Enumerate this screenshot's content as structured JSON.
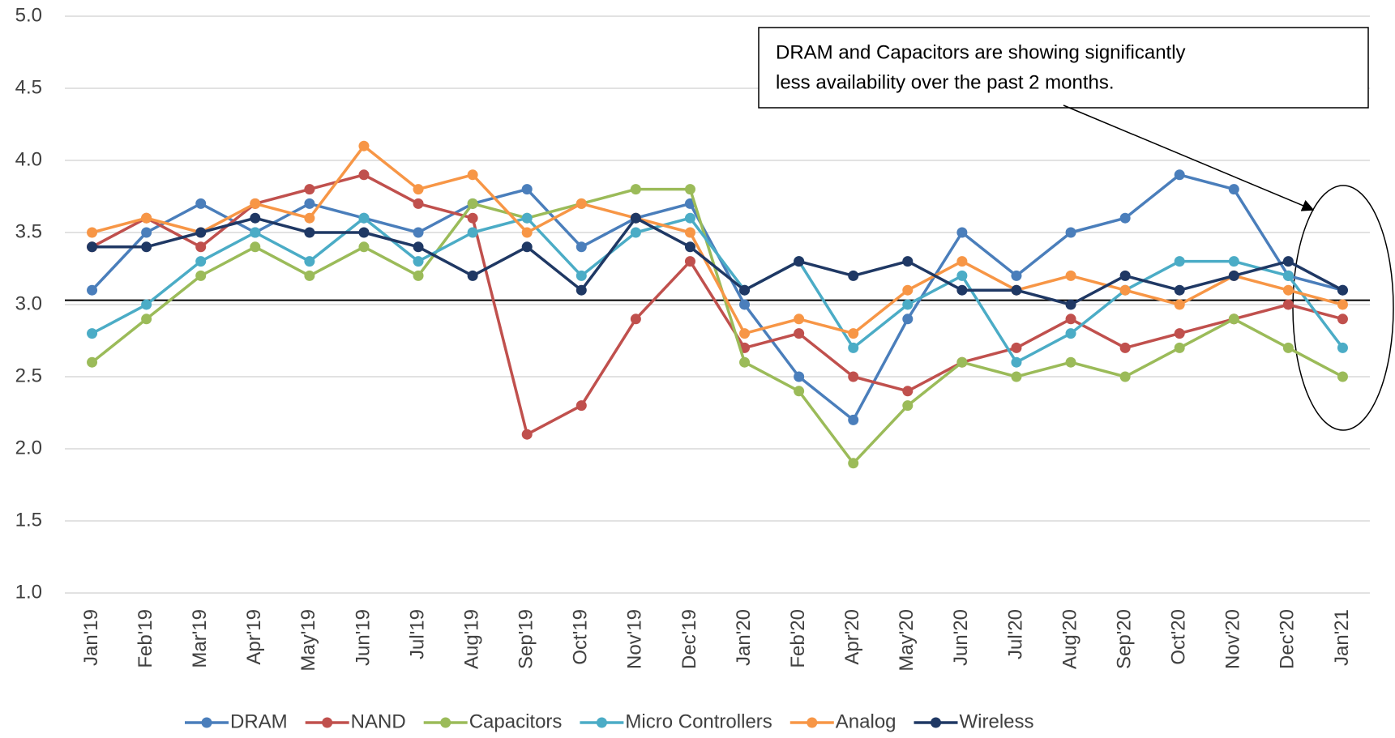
{
  "chart_data": {
    "type": "line",
    "categories": [
      "Jan'19",
      "Feb'19",
      "Mar'19",
      "Apr'19",
      "May'19",
      "Jun'19",
      "Jul'19",
      "Aug'19",
      "Sep'19",
      "Oct'19",
      "Nov'19",
      "Dec'19",
      "Jan'20",
      "Feb'20",
      "Apr'20",
      "May'20",
      "Jun'20",
      "Jul'20",
      "Aug'20",
      "Sep'20",
      "Oct'20",
      "Nov'20",
      "Dec'20",
      "Jan'21"
    ],
    "series": [
      {
        "name": "DRAM",
        "color": "#4a7ebb",
        "values": [
          3.1,
          3.5,
          3.7,
          3.5,
          3.7,
          3.6,
          3.5,
          3.7,
          3.8,
          3.4,
          3.6,
          3.7,
          3.0,
          2.5,
          2.2,
          2.9,
          3.5,
          3.2,
          3.5,
          3.6,
          3.9,
          3.8,
          3.2,
          3.1
        ]
      },
      {
        "name": "NAND",
        "color": "#c0504d",
        "values": [
          3.4,
          3.6,
          3.4,
          3.7,
          3.8,
          3.9,
          3.7,
          3.6,
          2.1,
          2.3,
          2.9,
          3.3,
          2.7,
          2.8,
          2.5,
          2.4,
          2.6,
          2.7,
          2.9,
          2.7,
          2.8,
          2.9,
          3.0,
          2.9
        ]
      },
      {
        "name": "Capacitors",
        "color": "#9bbb59",
        "values": [
          2.6,
          2.9,
          3.2,
          3.4,
          3.2,
          3.4,
          3.2,
          3.7,
          3.6,
          3.7,
          3.8,
          3.8,
          2.6,
          2.4,
          1.9,
          2.3,
          2.6,
          2.5,
          2.6,
          2.5,
          2.7,
          2.9,
          2.7,
          2.5
        ]
      },
      {
        "name": "Micro Controllers",
        "color": "#4bacc6",
        "values": [
          2.8,
          3.0,
          3.3,
          3.5,
          3.3,
          3.6,
          3.3,
          3.5,
          3.6,
          3.2,
          3.5,
          3.6,
          3.1,
          3.3,
          2.7,
          3.0,
          3.2,
          2.6,
          2.8,
          3.1,
          3.3,
          3.3,
          3.2,
          2.7
        ]
      },
      {
        "name": "Analog",
        "color": "#f79646",
        "values": [
          3.5,
          3.6,
          3.5,
          3.7,
          3.6,
          4.1,
          3.8,
          3.9,
          3.5,
          3.7,
          3.6,
          3.5,
          2.8,
          2.9,
          2.8,
          3.1,
          3.3,
          3.1,
          3.2,
          3.1,
          3.0,
          3.2,
          3.1,
          3.0
        ]
      },
      {
        "name": "Wireless",
        "color": "#1f3864",
        "values": [
          3.4,
          3.4,
          3.5,
          3.6,
          3.5,
          3.5,
          3.4,
          3.2,
          3.4,
          3.1,
          3.6,
          3.4,
          3.1,
          3.3,
          3.2,
          3.3,
          3.1,
          3.1,
          3.0,
          3.2,
          3.1,
          3.2,
          3.3,
          3.1
        ]
      }
    ],
    "ylim": [
      1.0,
      5.0
    ],
    "yticks": [
      {
        "value": 1,
        "label": "1.0"
      },
      1.5,
      {
        "value": 2,
        "label": "2.0"
      },
      2.5,
      {
        "value": 3,
        "label": "3.0"
      },
      3.5,
      {
        "value": 4,
        "label": "4.0"
      },
      4.5,
      {
        "value": 5,
        "label": "5.0"
      }
    ],
    "grid": true,
    "reference_line": 3.03,
    "annotation": [
      "DRAM and Capacitors are showing significantly",
      "less availability over the past 2 months."
    ],
    "legend": "bottom"
  }
}
